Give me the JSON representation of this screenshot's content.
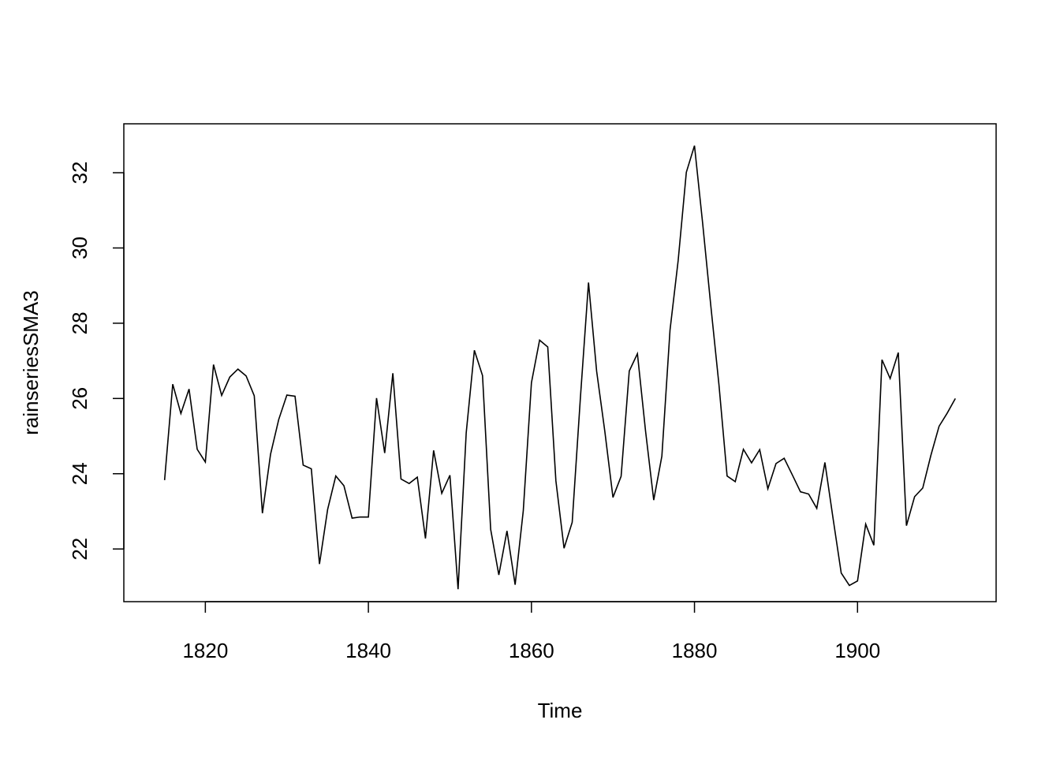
{
  "chart_data": {
    "type": "line",
    "xlabel": "Time",
    "ylabel": "rainseriesSMA3",
    "xlim": [
      1810,
      1917
    ],
    "ylim": [
      20.6,
      33.3
    ],
    "x_ticks": [
      1820,
      1840,
      1860,
      1880,
      1900
    ],
    "y_ticks": [
      22,
      24,
      26,
      28,
      30,
      32
    ],
    "grid": false,
    "line_color": "#000000",
    "series": [
      {
        "x": [
          1815,
          1816,
          1817,
          1818,
          1819,
          1820,
          1821,
          1822,
          1823,
          1824,
          1825,
          1826,
          1827,
          1828,
          1829,
          1830,
          1831,
          1832,
          1833,
          1834,
          1835,
          1836,
          1837,
          1838,
          1839,
          1840,
          1841,
          1842,
          1843,
          1844,
          1845,
          1846,
          1847,
          1848,
          1849,
          1850,
          1851,
          1852,
          1853,
          1854,
          1855,
          1856,
          1857,
          1858,
          1859,
          1860,
          1861,
          1862,
          1863,
          1864,
          1865,
          1866,
          1867,
          1868,
          1869,
          1870,
          1871,
          1872,
          1873,
          1874,
          1875,
          1876,
          1877,
          1878,
          1879,
          1880,
          1881,
          1882,
          1883,
          1884,
          1885,
          1886,
          1887,
          1888,
          1889,
          1890,
          1891,
          1892,
          1893,
          1894,
          1895,
          1896,
          1897,
          1898,
          1899,
          1900,
          1901,
          1902,
          1903,
          1904,
          1905,
          1906,
          1907,
          1908,
          1909,
          1910,
          1911,
          1912
        ],
        "values": [
          23.83,
          26.38,
          25.6,
          26.25,
          24.65,
          24.31,
          26.9,
          26.08,
          26.57,
          26.78,
          26.6,
          26.07,
          22.95,
          24.52,
          25.44,
          26.09,
          26.06,
          24.23,
          24.13,
          21.6,
          23.05,
          23.94,
          23.68,
          22.82,
          22.85,
          22.85,
          26.01,
          24.55,
          26.67,
          23.86,
          23.74,
          23.91,
          22.28,
          24.62,
          23.48,
          23.96,
          20.93,
          25.09,
          27.28,
          26.61,
          22.52,
          21.31,
          22.48,
          21.05,
          23.02,
          26.42,
          27.55,
          27.37,
          23.81,
          22.02,
          22.71,
          26.0,
          29.08,
          26.72,
          25.13,
          23.37,
          23.93,
          26.73,
          27.19,
          25.13,
          23.3,
          24.47,
          27.82,
          29.67,
          32.01,
          32.72,
          30.66,
          28.47,
          26.37,
          23.94,
          23.79,
          24.65,
          24.29,
          24.64,
          23.6,
          24.27,
          24.41,
          23.97,
          23.52,
          23.46,
          23.08,
          24.3,
          22.81,
          21.36,
          21.03,
          21.15,
          22.66,
          22.1,
          27.03,
          26.53,
          27.22,
          22.62,
          23.39,
          23.62,
          24.49,
          25.26,
          25.61,
          26.0
        ]
      }
    ]
  }
}
